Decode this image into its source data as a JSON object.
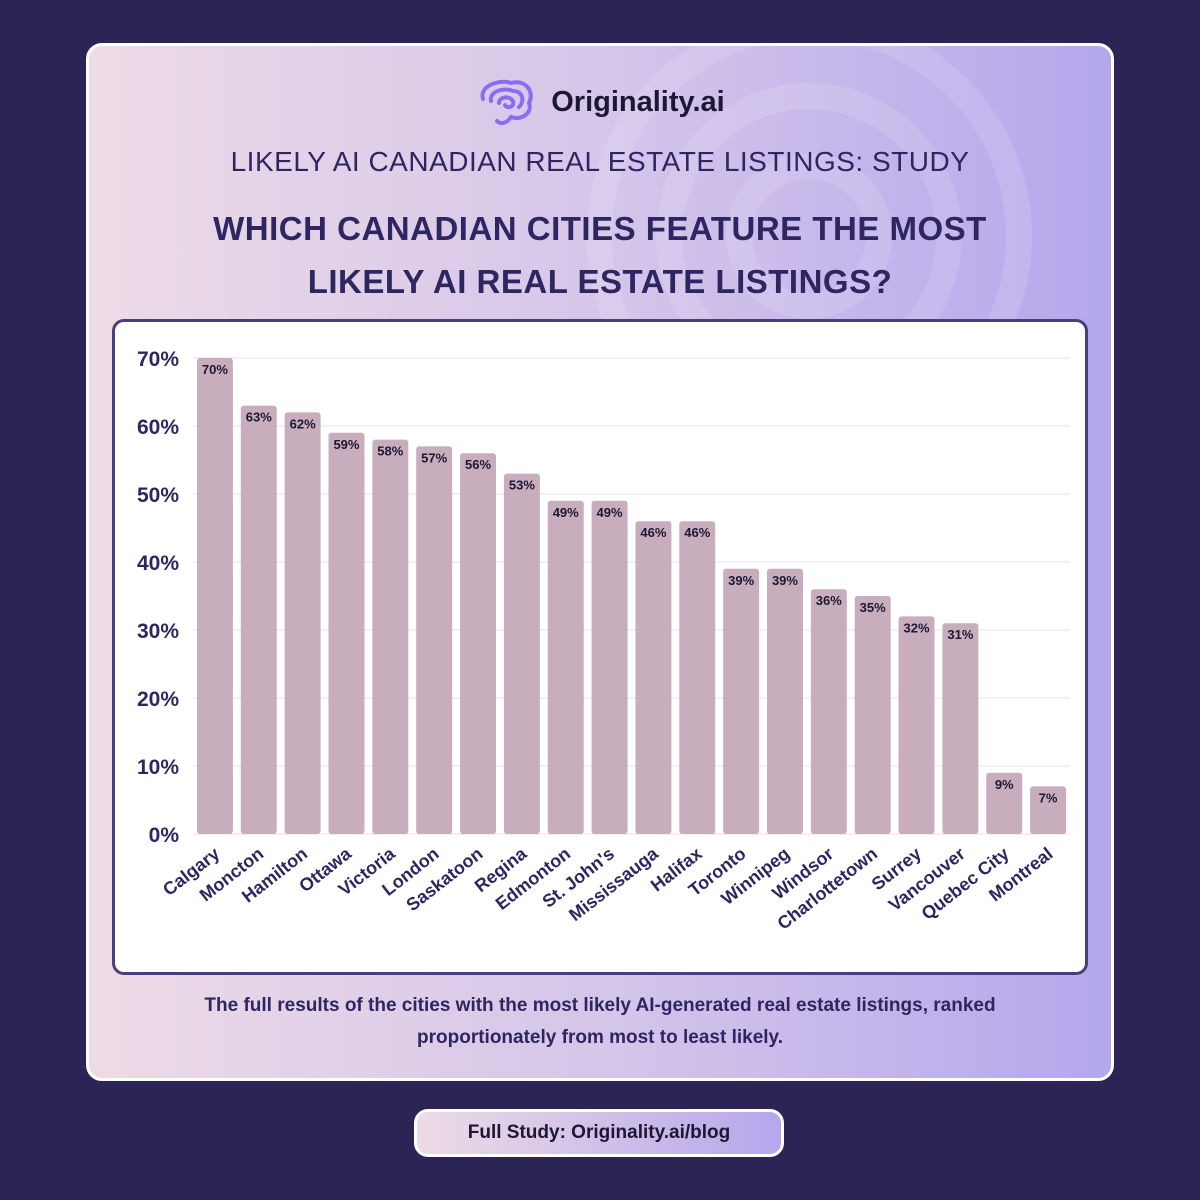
{
  "brand": {
    "name": "Originality.ai",
    "logo_icon": "brain-icon",
    "accent_color": "#8b6cf0"
  },
  "subtitle": "LIKELY AI CANADIAN REAL ESTATE LISTINGS: STUDY",
  "title_lines": [
    "WHICH CANADIAN CITIES FEATURE THE MOST",
    "LIKELY AI REAL ESTATE LISTINGS?"
  ],
  "caption_lines": [
    "The full results of the cities with the most likely AI-generated real estate listings, ranked",
    "proportionately from most to least likely."
  ],
  "footer": {
    "label": "Full Study: Originality.ai/blog"
  },
  "chart_data": {
    "type": "bar",
    "categories": [
      "Calgary",
      "Moncton",
      "Hamilton",
      "Ottawa",
      "Victoria",
      "London",
      "Saskatoon",
      "Regina",
      "Edmonton",
      "St. John's",
      "Mississauga",
      "Halifax",
      "Toronto",
      "Winnipeg",
      "Windsor",
      "Charlottetown",
      "Surrey",
      "Vancouver",
      "Quebec City",
      "Montreal"
    ],
    "values": [
      70,
      63,
      62,
      59,
      58,
      57,
      56,
      53,
      49,
      49,
      46,
      46,
      39,
      39,
      36,
      35,
      32,
      31,
      9,
      7
    ],
    "value_suffix": "%",
    "title": "",
    "xlabel": "",
    "ylabel": "",
    "ylim": [
      0,
      70
    ],
    "yticks": [
      0,
      10,
      20,
      30,
      40,
      50,
      60,
      70
    ],
    "grid": true,
    "bar_color": "#c8adbd",
    "legend": "none"
  }
}
